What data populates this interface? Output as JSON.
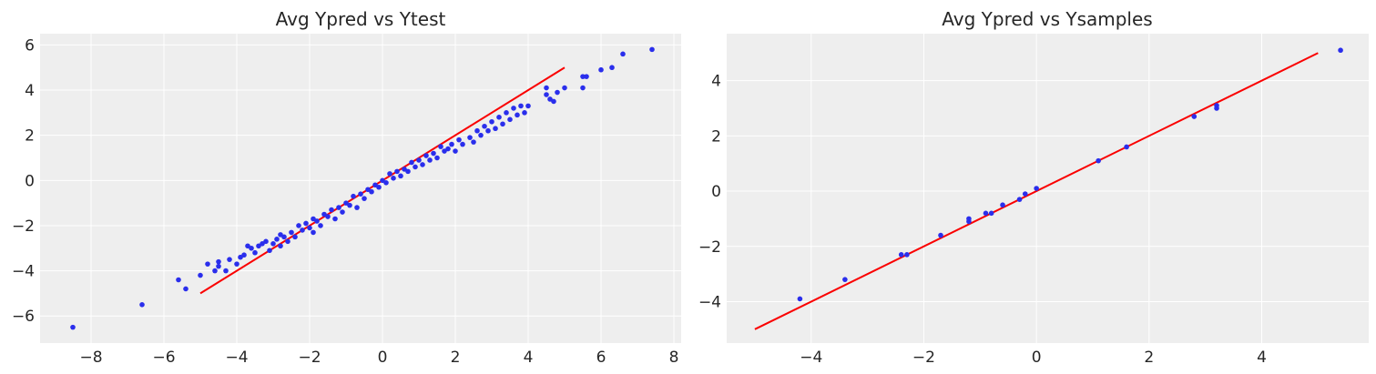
{
  "chart_data": [
    {
      "type": "scatter",
      "title": "Avg Ypred vs Ytest",
      "xlabel": "",
      "ylabel": "",
      "xlim": [
        -9.4,
        8.2
      ],
      "ylim": [
        -7.2,
        6.5
      ],
      "xticks": [
        -8,
        -6,
        -4,
        -2,
        0,
        2,
        4,
        6,
        8
      ],
      "yticks": [
        -6,
        -4,
        -2,
        0,
        2,
        4,
        6
      ],
      "grid": true,
      "colors": {
        "points": "#2a2eec",
        "line": "#fa0000",
        "background": "#eeeeee",
        "grid": "#ffffff"
      },
      "reference_line": {
        "x": [
          -5,
          5
        ],
        "y": [
          -5,
          5
        ]
      },
      "points": [
        [
          -8.5,
          -6.5
        ],
        [
          -6.6,
          -5.5
        ],
        [
          -5.6,
          -4.4
        ],
        [
          -5.4,
          -4.8
        ],
        [
          -5.0,
          -4.2
        ],
        [
          -4.8,
          -3.7
        ],
        [
          -4.6,
          -4.0
        ],
        [
          -4.5,
          -3.6
        ],
        [
          -4.5,
          -3.8
        ],
        [
          -4.3,
          -4.0
        ],
        [
          -4.2,
          -3.5
        ],
        [
          -4.0,
          -3.7
        ],
        [
          -3.9,
          -3.4
        ],
        [
          -3.8,
          -3.3
        ],
        [
          -3.7,
          -2.9
        ],
        [
          -3.6,
          -3.0
        ],
        [
          -3.5,
          -3.2
        ],
        [
          -3.4,
          -2.9
        ],
        [
          -3.3,
          -2.8
        ],
        [
          -3.2,
          -2.7
        ],
        [
          -3.1,
          -3.1
        ],
        [
          -3.0,
          -2.8
        ],
        [
          -2.9,
          -2.6
        ],
        [
          -2.8,
          -2.4
        ],
        [
          -2.8,
          -2.9
        ],
        [
          -2.7,
          -2.5
        ],
        [
          -2.6,
          -2.7
        ],
        [
          -2.5,
          -2.3
        ],
        [
          -2.4,
          -2.5
        ],
        [
          -2.3,
          -2.0
        ],
        [
          -2.2,
          -2.2
        ],
        [
          -2.1,
          -1.9
        ],
        [
          -2.0,
          -2.1
        ],
        [
          -1.9,
          -1.7
        ],
        [
          -1.9,
          -2.3
        ],
        [
          -1.8,
          -1.8
        ],
        [
          -1.7,
          -2.0
        ],
        [
          -1.6,
          -1.5
        ],
        [
          -1.5,
          -1.6
        ],
        [
          -1.4,
          -1.3
        ],
        [
          -1.3,
          -1.7
        ],
        [
          -1.2,
          -1.2
        ],
        [
          -1.1,
          -1.4
        ],
        [
          -1.0,
          -1.0
        ],
        [
          -0.9,
          -1.1
        ],
        [
          -0.8,
          -0.7
        ],
        [
          -0.7,
          -1.2
        ],
        [
          -0.6,
          -0.6
        ],
        [
          -0.5,
          -0.8
        ],
        [
          -0.4,
          -0.4
        ],
        [
          -0.3,
          -0.5
        ],
        [
          -0.2,
          -0.2
        ],
        [
          -0.1,
          -0.3
        ],
        [
          0.0,
          0.0
        ],
        [
          0.1,
          -0.1
        ],
        [
          0.2,
          0.3
        ],
        [
          0.3,
          0.1
        ],
        [
          0.4,
          0.4
        ],
        [
          0.5,
          0.2
        ],
        [
          0.6,
          0.5
        ],
        [
          0.7,
          0.4
        ],
        [
          0.8,
          0.8
        ],
        [
          0.9,
          0.6
        ],
        [
          1.0,
          0.9
        ],
        [
          1.1,
          0.7
        ],
        [
          1.2,
          1.1
        ],
        [
          1.3,
          0.9
        ],
        [
          1.4,
          1.2
        ],
        [
          1.5,
          1.0
        ],
        [
          1.6,
          1.5
        ],
        [
          1.7,
          1.3
        ],
        [
          1.8,
          1.4
        ],
        [
          1.9,
          1.6
        ],
        [
          2.0,
          1.3
        ],
        [
          2.1,
          1.8
        ],
        [
          2.2,
          1.6
        ],
        [
          2.4,
          1.9
        ],
        [
          2.5,
          1.7
        ],
        [
          2.6,
          2.2
        ],
        [
          2.7,
          2.0
        ],
        [
          2.8,
          2.4
        ],
        [
          2.9,
          2.2
        ],
        [
          3.0,
          2.6
        ],
        [
          3.1,
          2.3
        ],
        [
          3.2,
          2.8
        ],
        [
          3.3,
          2.5
        ],
        [
          3.4,
          3.0
        ],
        [
          3.5,
          2.7
        ],
        [
          3.6,
          3.2
        ],
        [
          3.7,
          2.9
        ],
        [
          3.8,
          3.3
        ],
        [
          3.9,
          3.0
        ],
        [
          4.0,
          3.3
        ],
        [
          4.5,
          3.8
        ],
        [
          4.5,
          4.1
        ],
        [
          4.6,
          3.6
        ],
        [
          4.7,
          3.5
        ],
        [
          4.8,
          3.9
        ],
        [
          5.0,
          4.1
        ],
        [
          5.5,
          4.1
        ],
        [
          5.5,
          4.6
        ],
        [
          5.6,
          4.6
        ],
        [
          6.0,
          4.9
        ],
        [
          6.3,
          5.0
        ],
        [
          6.6,
          5.6
        ],
        [
          7.4,
          5.8
        ]
      ]
    },
    {
      "type": "scatter",
      "title": "Avg Ypred vs Ysamples",
      "xlabel": "",
      "ylabel": "",
      "xlim": [
        -5.5,
        5.9
      ],
      "ylim": [
        -5.5,
        5.7
      ],
      "xticks": [
        -4,
        -2,
        0,
        2,
        4
      ],
      "yticks": [
        -4,
        -2,
        0,
        2,
        4
      ],
      "grid": true,
      "colors": {
        "points": "#2a2eec",
        "line": "#fa0000",
        "background": "#eeeeee",
        "grid": "#ffffff"
      },
      "reference_line": {
        "x": [
          -5,
          5
        ],
        "y": [
          -5,
          5
        ]
      },
      "points": [
        [
          -4.2,
          -3.9
        ],
        [
          -3.4,
          -3.2
        ],
        [
          -2.4,
          -2.3
        ],
        [
          -2.3,
          -2.3
        ],
        [
          -1.7,
          -1.6
        ],
        [
          -1.2,
          -1.1
        ],
        [
          -1.2,
          -1.0
        ],
        [
          -0.9,
          -0.8
        ],
        [
          -0.8,
          -0.8
        ],
        [
          -0.6,
          -0.5
        ],
        [
          -0.3,
          -0.3
        ],
        [
          -0.2,
          -0.1
        ],
        [
          0.0,
          0.1
        ],
        [
          1.1,
          1.1
        ],
        [
          1.6,
          1.6
        ],
        [
          2.8,
          2.7
        ],
        [
          3.2,
          3.0
        ],
        [
          3.2,
          3.1
        ],
        [
          5.4,
          5.1
        ]
      ]
    }
  ]
}
